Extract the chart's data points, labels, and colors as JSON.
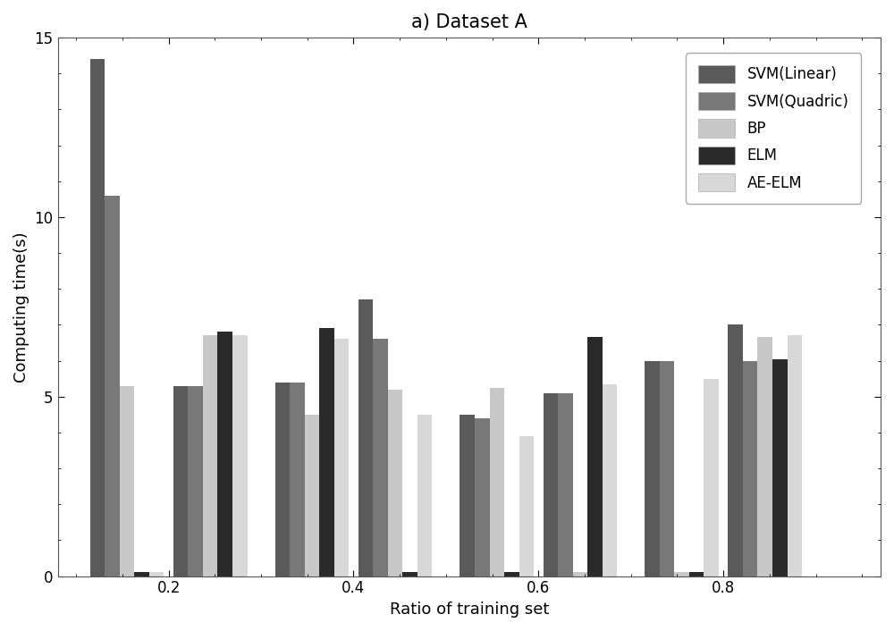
{
  "title": "a) Dataset A",
  "xlabel": "Ratio of training set",
  "ylabel": "Computing time(s)",
  "ylim": [
    0,
    15
  ],
  "yticks": [
    0,
    5,
    10,
    15
  ],
  "xtick_positions": [
    0.2,
    0.4,
    0.6,
    0.8
  ],
  "xtick_labels": [
    "0.2",
    "0.4",
    "0.6",
    "0.8"
  ],
  "legend_labels": [
    "SVM(Linear)",
    "SVM(Quadric)",
    "BP",
    "ELM",
    "AE-ELM"
  ],
  "legend_colors": [
    "#5a5a5a",
    "#787878",
    "#c8c8c8",
    "#2a2a2a",
    "#d8d8d8"
  ],
  "bar_colors": [
    "#5a5a5a",
    "#787878",
    "#c8c8c8",
    "#2a2a2a",
    "#d8d8d8"
  ],
  "background_color": "#ffffff",
  "title_fontsize": 15,
  "axis_fontsize": 13,
  "tick_fontsize": 12,
  "legend_fontsize": 12,
  "cluster_centers": [
    0.155,
    0.245,
    0.355,
    0.445,
    0.555,
    0.645,
    0.755,
    0.845
  ],
  "bar_values": [
    [
      14.4,
      10.6,
      5.3,
      0.12,
      0.12
    ],
    [
      5.3,
      5.3,
      6.7,
      6.8,
      6.7
    ],
    [
      5.4,
      5.4,
      4.5,
      6.9,
      6.6
    ],
    [
      7.7,
      6.6,
      5.2,
      0.12,
      4.5
    ],
    [
      4.5,
      4.4,
      5.25,
      0.12,
      3.9
    ],
    [
      5.1,
      5.1,
      0.12,
      6.65,
      5.35
    ],
    [
      6.0,
      6.0,
      0.12,
      0.12,
      5.5
    ],
    [
      7.0,
      6.0,
      6.65,
      6.05,
      6.7
    ]
  ],
  "bar_width": 0.016,
  "xlim": [
    0.08,
    0.97
  ]
}
